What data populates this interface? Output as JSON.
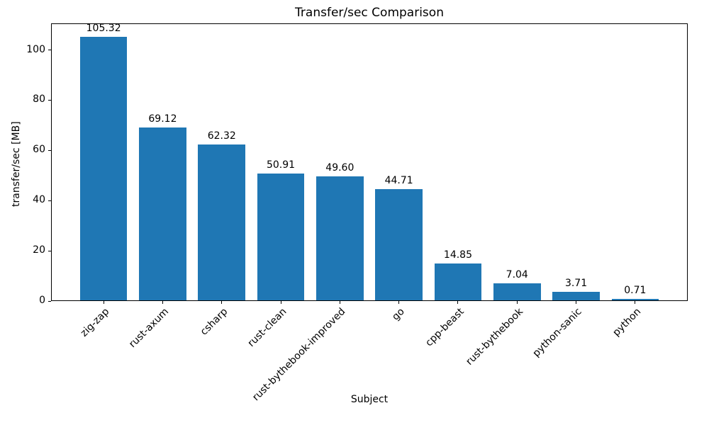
{
  "chart_data": {
    "type": "bar",
    "title": "Transfer/sec Comparison",
    "xlabel": "Subject",
    "ylabel": "transfer/sec [MB]",
    "categories": [
      "zig-zap",
      "rust-axum",
      "csharp",
      "rust-clean",
      "rust-bythebook-improved",
      "go",
      "cpp-beast",
      "rust-bythebook",
      "python-sanic",
      "python"
    ],
    "values": [
      105.32,
      69.12,
      62.32,
      50.91,
      49.6,
      44.71,
      14.85,
      7.04,
      3.71,
      0.71
    ],
    "value_labels": [
      "105.32",
      "69.12",
      "62.32",
      "50.91",
      "49.60",
      "44.71",
      "14.85",
      "7.04",
      "3.71",
      "0.71"
    ],
    "yticks": [
      0,
      20,
      40,
      60,
      80,
      100
    ],
    "ylim": [
      0,
      110.59
    ],
    "bar_color": "#1f77b4",
    "axis_color": "#000000",
    "grid": false,
    "legend_position": "none"
  }
}
